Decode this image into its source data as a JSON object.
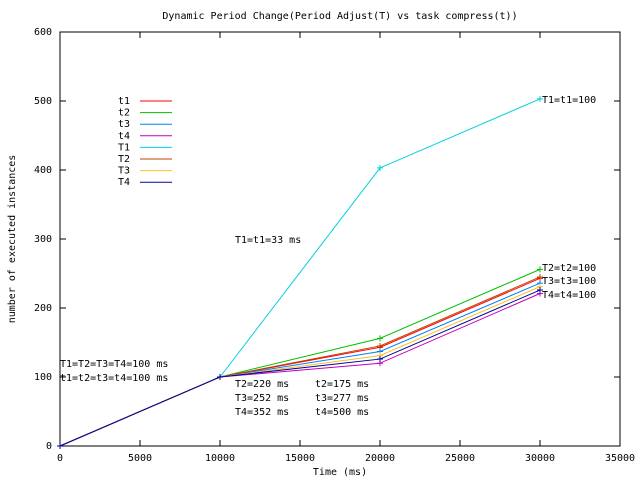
{
  "chart_data": {
    "type": "line",
    "title": "Dynamic Period Change(Period Adjust(T) vs task compress(t))",
    "x_label": "Time (ms)",
    "y_label": "number of executed instances",
    "x": [
      0,
      10000,
      20000,
      30000
    ],
    "xlim": [
      0,
      35000
    ],
    "xticks": [
      0,
      5000,
      10000,
      15000,
      20000,
      25000,
      30000,
      35000
    ],
    "ylim": [
      0,
      600
    ],
    "yticks": [
      0,
      100,
      200,
      300,
      400,
      500,
      600
    ],
    "legend": "upper left",
    "series": [
      {
        "name": "t1",
        "color": "#ff0000",
        "values": [
          0,
          100,
          143,
          243
        ]
      },
      {
        "name": "t2",
        "color": "#00c000",
        "values": [
          0,
          100,
          156,
          256
        ]
      },
      {
        "name": "t3",
        "color": "#0080ff",
        "values": [
          0,
          100,
          137,
          236
        ]
      },
      {
        "name": "t4",
        "color": "#c000c0",
        "values": [
          0,
          100,
          120,
          221
        ]
      },
      {
        "name": "T1",
        "color": "#00d0e0",
        "values": [
          0,
          100,
          403,
          503
        ]
      },
      {
        "name": "T2",
        "color": "#c04000",
        "values": [
          0,
          100,
          145,
          245
        ]
      },
      {
        "name": "T3",
        "color": "#ffc020",
        "values": [
          0,
          100,
          131,
          231
        ]
      },
      {
        "name": "T4",
        "color": "#0000a0",
        "values": [
          0,
          100,
          126,
          226
        ]
      }
    ],
    "annotations": [
      "T1=t1=100",
      "T2=t2=100",
      "T3=t3=100",
      "T4=t4=100",
      "T1=t1=33 ms",
      "T1=T2=T3=T4=100 ms",
      "t1=t2=t3=t4=100 ms",
      "T2=220 ms",
      "t2=175 ms",
      "T3=252 ms",
      "t3=277 ms",
      "T4=352 ms",
      "t4=500 ms"
    ]
  }
}
